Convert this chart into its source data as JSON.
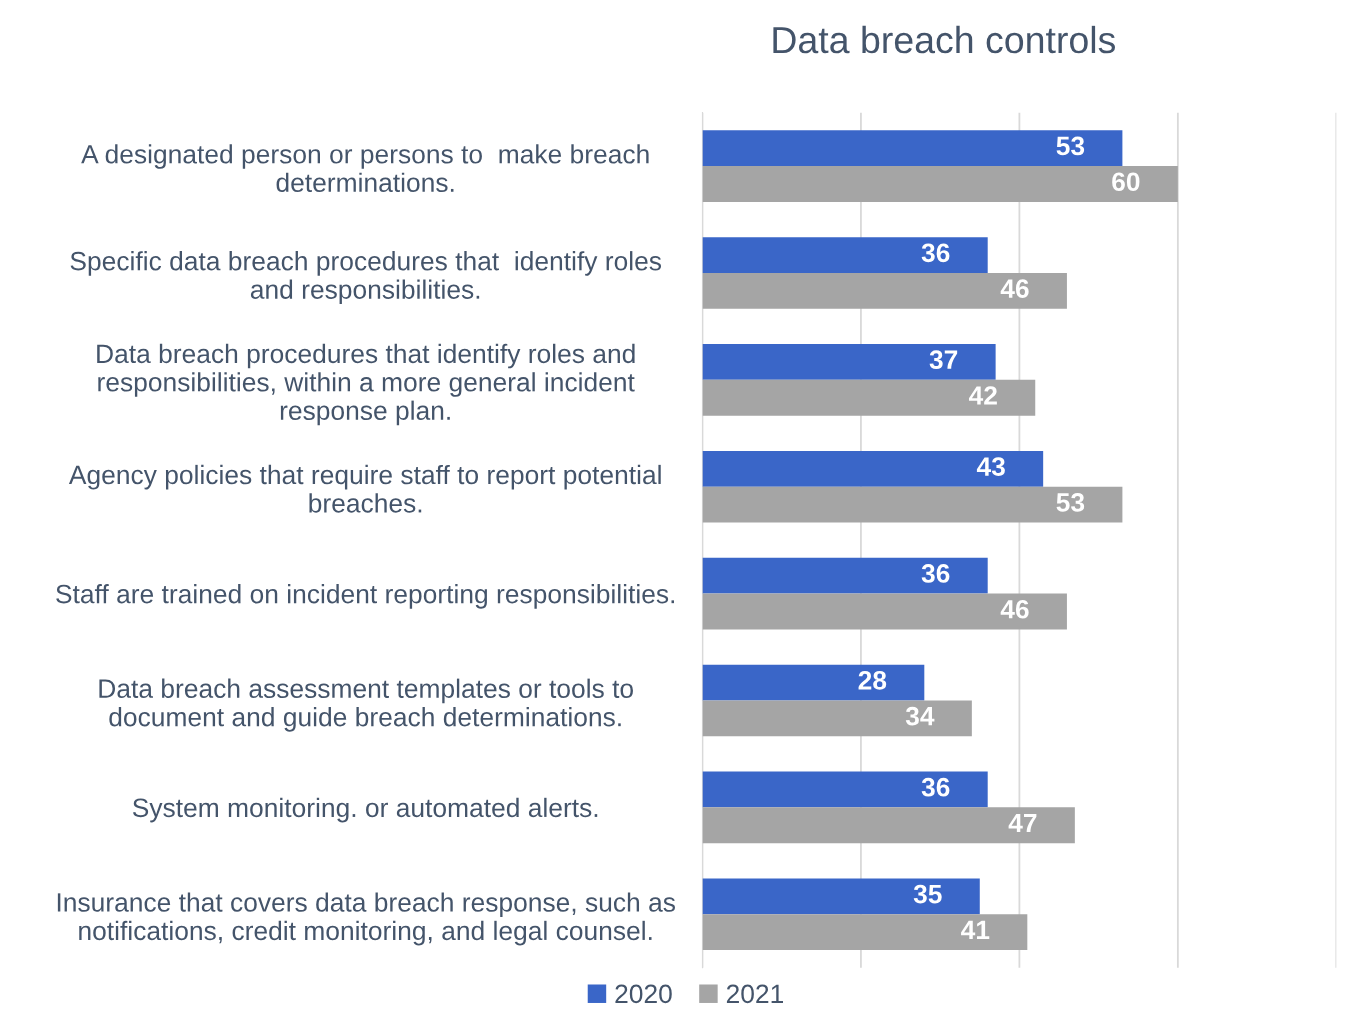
{
  "chart_data": {
    "type": "bar",
    "orientation": "horizontal",
    "title": "Data breach controls",
    "categories": [
      "A designated person or persons to  make breach\ndeterminations.",
      "Specific data breach procedures that  identify roles\nand responsibilities.",
      "Data breach procedures that identify roles and\nresponsibilities, within a more general incident\nresponse plan.",
      "Agency policies that require staff to report potential\nbreaches.",
      "Staff are trained on incident reporting responsibilities.",
      "Data breach assessment templates or tools to\ndocument and guide breach determinations.",
      "System monitoring. or automated alerts.",
      "Insurance that covers data breach response, such as\nnotifications, credit monitoring, and legal counsel."
    ],
    "series": [
      {
        "name": "2020",
        "color": "#3a66c8",
        "values": [
          53,
          36,
          37,
          43,
          36,
          28,
          36,
          35
        ]
      },
      {
        "name": "2021",
        "color": "#a5a5a5",
        "values": [
          60,
          46,
          42,
          53,
          46,
          34,
          47,
          41
        ]
      }
    ],
    "xlim": [
      0,
      80
    ],
    "xticks": [
      {
        "value": 0,
        "label": null
      },
      {
        "value": 20,
        "label": null
      },
      {
        "value": 40,
        "label": null
      },
      {
        "value": 60,
        "label": null
      },
      {
        "value": 80,
        "label": null
      }
    ],
    "tick_labels": "y",
    "grid": "x",
    "data_labels": true,
    "legend": "bottom"
  }
}
